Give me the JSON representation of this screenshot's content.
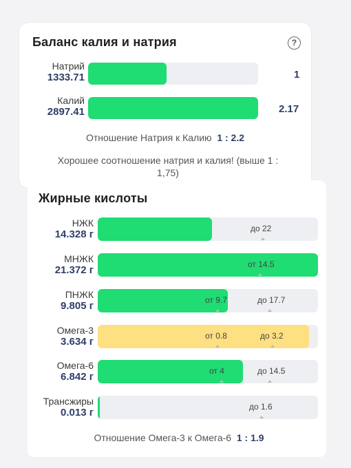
{
  "balance": {
    "title": "Баланс калия и натрия",
    "sodium": {
      "name": "Натрий",
      "value": "1333.71",
      "ratio": "1",
      "fill": 0.46
    },
    "potassium": {
      "name": "Калий",
      "value": "2897.41",
      "ratio": "2.17",
      "fill": 1.0
    },
    "ratio_label": "Отношение Натрия к Калию",
    "ratio_value": "1 : 2.2",
    "message_line1": "Хорошее соотношение натрия и калия! (выше 1 :",
    "message_line2": "1,75)"
  },
  "fatty": {
    "title": "Жирные кислоты",
    "rows": [
      {
        "name": "НЖК",
        "value": "14.328 г",
        "fill": 0.52,
        "color": "#1fdc73",
        "marks": [
          "до 22"
        ]
      },
      {
        "name": "МНЖК",
        "value": "21.372 г",
        "fill": 1.0,
        "color": "#1fdc73",
        "marks": [
          "от 14.5"
        ]
      },
      {
        "name": "ПНЖК",
        "value": "9.805 г",
        "fill": 0.59,
        "color": "#1fdc73",
        "marks": [
          "от 9.7",
          "до 17.7"
        ]
      },
      {
        "name": "Омега-3",
        "value": "3.634 г",
        "fill": 0.96,
        "color": "#fde081",
        "marks": [
          "от 0.8",
          "до 3.2"
        ]
      },
      {
        "name": "Омега-6",
        "value": "6.842 г",
        "fill": 0.66,
        "color": "#1fdc73",
        "marks": [
          "от 4",
          "до 14.5"
        ]
      },
      {
        "name": "Трансжиры",
        "value": "0.013 г",
        "fill": 0.01,
        "color": "#1fdc73",
        "marks": [
          "до 1.6"
        ]
      }
    ],
    "omega_ratio_label": "Отношение Омега-3 к Омега-6",
    "omega_ratio_value": "1 : 1.9"
  }
}
